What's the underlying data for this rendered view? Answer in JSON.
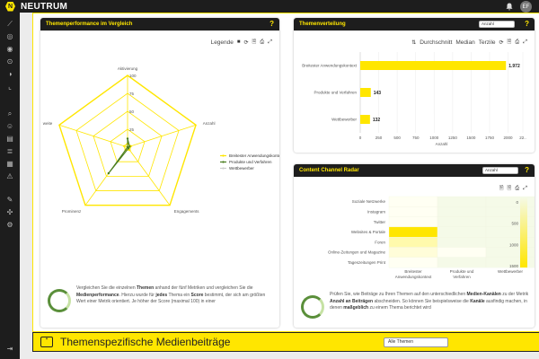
{
  "app": {
    "brand": "NEUTRUM",
    "logo_letter": "N",
    "user_initials": "EF"
  },
  "sidebar": {
    "icons": [
      "chart-line-icon",
      "target-icon",
      "eye-icon",
      "trend-icon",
      "gauge-icon",
      "analytics-icon",
      "search-icon",
      "people-icon",
      "document-icon",
      "list-icon",
      "news-icon",
      "alert-icon",
      "tools-icon",
      "network-icon",
      "settings-icon",
      "logout-icon"
    ]
  },
  "radar_card": {
    "title": "Themenperformance im Vergleich",
    "help": "?",
    "legend_label": "Legende",
    "tool_icons": [
      "■",
      "⟳",
      "🗎",
      "⎙",
      "⤢"
    ],
    "axes": [
      "Aktivierung",
      "Anzahl",
      "Engagements",
      "Prominenz",
      "weite"
    ],
    "ticks": [
      "25",
      "50",
      "75",
      "100"
    ],
    "legend": [
      "Breitester Anwendungskontext",
      "Produkte und Verfahren",
      "Wettbewerber"
    ],
    "description_parts": [
      {
        "t": "Vergleichen Sie die einzelnen ",
        "b": false
      },
      {
        "t": "Themen",
        "b": true
      },
      {
        "t": " anhand der fünf Metriken und vergleichen Sie die ",
        "b": false
      },
      {
        "t": "Medienperformance",
        "b": true
      },
      {
        "t": ". Hierzu wurde für ",
        "b": false
      },
      {
        "t": "jedes",
        "b": true
      },
      {
        "t": " Thema ein ",
        "b": false
      },
      {
        "t": "Score",
        "b": true
      },
      {
        "t": " bestimmt, der sich am größten Wert einer Metrik orientiert. Je höher der Score (maximal 100) in einer",
        "b": false
      }
    ]
  },
  "dist_card": {
    "title": "Themenverteilung",
    "help": "?",
    "select_value": "Anzahl",
    "tool_labels": [
      "Durchschnitt",
      "Median",
      "Terzile"
    ],
    "tool_icons": [
      "⟳",
      "🗎",
      "⎙",
      "⤢"
    ],
    "xlabel": "Anzahl",
    "x_ticks": [
      "0",
      "250",
      "500",
      "750",
      "1000",
      "1250",
      "1500",
      "1750",
      "2000",
      "22.."
    ]
  },
  "radar_card_select": "",
  "channel_card": {
    "title": "Content Channel Radar",
    "help": "?",
    "select_value": "Anzahl",
    "tool_icons": [
      "🗎",
      "🗎",
      "⎙",
      "⤢"
    ],
    "rows": [
      "Soziale Netzwerke",
      "Instagram",
      "Twitter",
      "Websites & Portale",
      "Foren",
      "Online-Zeitungen und Magazine",
      "Tageszeitungen Print"
    ],
    "cols": [
      "Breitester Anwendungskontext",
      "Produkte und Verfahren",
      "Wettbewerber"
    ],
    "scale_labels": [
      "0",
      "500",
      "1000",
      "1500"
    ],
    "description_parts": [
      {
        "t": "Prüfen Sie, wie Beiträge zu Ihren Themen auf den unterschiedlichen ",
        "b": false
      },
      {
        "t": "Medien-Kanälen",
        "b": true
      },
      {
        "t": " zu der Metrik ",
        "b": false
      },
      {
        "t": "Anzahl an Beiträgen",
        "b": true
      },
      {
        "t": " abschneiden. So können Sie beispielsweise die ",
        "b": false
      },
      {
        "t": "Kanäle",
        "b": true
      },
      {
        "t": " ausfindig machen, in denen ",
        "b": false
      },
      {
        "t": "maßgeblich",
        "b": true
      },
      {
        "t": " zu einem Thema berichtet wird",
        "b": false
      }
    ]
  },
  "banner": {
    "title": "Themenspezifische Medienbeiträge",
    "select_value": "Alle Themen"
  },
  "chart_data": [
    {
      "type": "radar",
      "axes": [
        "Aktivierung",
        "Anzahl",
        "Engagements",
        "Prominenz",
        "weite"
      ],
      "rmax": 100,
      "series": [
        {
          "name": "Breitester Anwendungskontext",
          "values": [
            5,
            5,
            5,
            5,
            5
          ]
        },
        {
          "name": "Produkte und Verfahren",
          "values": [
            12,
            3,
            2,
            45,
            0
          ]
        },
        {
          "name": "Wettbewerber",
          "values": [
            0,
            0,
            0,
            0,
            0
          ]
        }
      ]
    },
    {
      "type": "bar",
      "orientation": "horizontal",
      "categories": [
        "Breitester Anwendungskontext",
        "Produkte und Verfahren",
        "Wettbewerber"
      ],
      "values": [
        1972,
        143,
        132
      ],
      "value_labels": [
        "1.972",
        "143",
        "132"
      ],
      "xlabel": "Anzahl",
      "xlim": [
        0,
        2200
      ]
    },
    {
      "type": "heatmap",
      "rows": [
        "Soziale Netzwerke",
        "Instagram",
        "Twitter",
        "Websites & Portale",
        "Foren",
        "Online-Zeitungen und Magazine",
        "Tageszeitungen Print"
      ],
      "cols": [
        "Breitester Anwendungskontext",
        "Produkte und Verfahren",
        "Wettbewerber"
      ],
      "values": [
        [
          20,
          0,
          0
        ],
        [
          20,
          0,
          0
        ],
        [
          20,
          0,
          0
        ],
        [
          1500,
          0,
          0
        ],
        [
          300,
          0,
          0
        ],
        [
          100,
          20,
          0
        ],
        [
          20,
          0,
          0
        ]
      ],
      "scale": [
        0,
        1500
      ]
    }
  ]
}
